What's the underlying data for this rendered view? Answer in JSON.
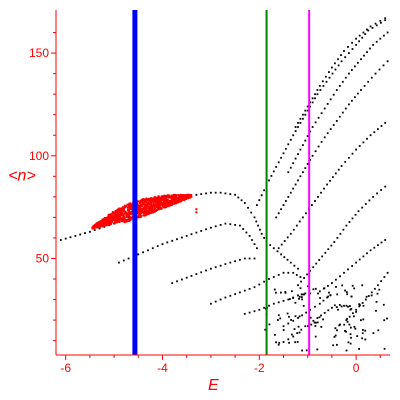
{
  "chart_data": {
    "type": "scatter",
    "title": "",
    "xlabel": "E",
    "ylabel": "<n>",
    "xlim": [
      -6.2,
      0.7
    ],
    "ylim": [
      3,
      170
    ],
    "xticks": [
      -6,
      -4,
      -2,
      0
    ],
    "yticks": [
      50,
      100,
      150
    ],
    "x_tick_labels": [
      "-6",
      "-4",
      "-2",
      "0"
    ],
    "y_tick_labels": [
      "50",
      "100",
      "150"
    ],
    "grid": false,
    "colors": {
      "axis": "#ff0000",
      "label": "#ff0000",
      "branches": "#000000",
      "cluster": "#ff0000",
      "line_blue": "#0000ff",
      "line_green": "#008000",
      "line_magenta": "#ff00ff"
    },
    "vertical_lines": [
      {
        "x": -4.57,
        "color": "#0000ff",
        "width": "thick"
      },
      {
        "x": -1.85,
        "color": "#008000",
        "width": "medium"
      },
      {
        "x": -0.97,
        "color": "#ff00ff",
        "width": "medium"
      }
    ],
    "red_cluster": {
      "x_range": [
        -5.45,
        -3.4
      ],
      "center": [
        [
          -5.45,
          65
        ],
        [
          -5.0,
          70
        ],
        [
          -4.5,
          74
        ],
        [
          -4.0,
          77.5
        ],
        [
          -3.6,
          79.5
        ],
        [
          -3.4,
          80.5
        ]
      ],
      "half_width": [
        [
          -5.45,
          0.5
        ],
        [
          -5.1,
          2.5
        ],
        [
          -4.7,
          4.5
        ],
        [
          -4.3,
          4.0
        ],
        [
          -3.8,
          2.5
        ],
        [
          -3.4,
          0.5
        ]
      ],
      "outliers": [
        [
          -3.3,
          72.5
        ],
        [
          -3.3,
          74.0
        ]
      ]
    },
    "series": [
      {
        "values": [
          [
            -6.1,
            59
          ],
          [
            -5.5,
            63
          ],
          [
            -5.0,
            67
          ],
          [
            -4.6,
            71
          ]
        ]
      },
      {
        "values": [
          [
            -3.3,
            81
          ],
          [
            -3.0,
            82
          ],
          [
            -2.8,
            82
          ],
          [
            -2.5,
            81
          ],
          [
            -2.3,
            77
          ],
          [
            -2.1,
            70
          ],
          [
            -1.95,
            62
          ],
          [
            -1.85,
            58
          ],
          [
            -1.7,
            55
          ],
          [
            -1.55,
            52
          ],
          [
            -1.35,
            48
          ],
          [
            -1.2,
            45
          ]
        ]
      },
      {
        "values": [
          [
            -4.9,
            48
          ],
          [
            -4.5,
            52
          ],
          [
            -4.0,
            57
          ],
          [
            -3.5,
            61
          ],
          [
            -3.0,
            65
          ],
          [
            -2.7,
            67
          ],
          [
            -2.4,
            66
          ],
          [
            -2.2,
            61
          ],
          [
            -2.05,
            55
          ]
        ]
      },
      {
        "values": [
          [
            -3.8,
            38
          ],
          [
            -3.4,
            41.5
          ],
          [
            -3.0,
            45
          ],
          [
            -2.6,
            48
          ],
          [
            -2.3,
            50
          ],
          [
            -2.1,
            50
          ]
        ]
      },
      {
        "values": [
          [
            -3.0,
            28
          ],
          [
            -2.7,
            31
          ],
          [
            -2.4,
            33.5
          ],
          [
            -2.1,
            36
          ],
          [
            -1.8,
            40
          ],
          [
            -1.5,
            43
          ],
          [
            -1.3,
            43
          ],
          [
            -1.15,
            41
          ]
        ]
      },
      {
        "values": [
          [
            -2.3,
            23
          ],
          [
            -2.0,
            25
          ],
          [
            -1.7,
            28
          ],
          [
            -1.4,
            30
          ],
          [
            -1.2,
            32
          ],
          [
            -1.05,
            33
          ],
          [
            -0.95,
            33
          ]
        ]
      },
      {
        "values": [
          [
            -1.5,
            17
          ],
          [
            -1.2,
            21
          ],
          [
            -0.95,
            25
          ],
          [
            -0.75,
            28
          ],
          [
            -0.6,
            31
          ]
        ]
      },
      {
        "values": [
          [
            -1.6,
            8
          ],
          [
            -1.3,
            12
          ],
          [
            -1.05,
            17
          ],
          [
            -0.8,
            21
          ],
          [
            -0.5,
            26
          ],
          [
            -0.2,
            27
          ],
          [
            0.0,
            24
          ]
        ]
      },
      {
        "values": [
          [
            -1.6,
            55
          ],
          [
            -1.35,
            62
          ],
          [
            -1.1,
            70
          ],
          [
            -0.85,
            78
          ],
          [
            -0.6,
            86
          ],
          [
            -0.3,
            95
          ],
          [
            0.0,
            103
          ],
          [
            0.3,
            110
          ],
          [
            0.6,
            116
          ]
        ]
      },
      {
        "values": [
          [
            -1.2,
            37
          ],
          [
            -0.95,
            44
          ],
          [
            -0.7,
            51
          ],
          [
            -0.45,
            58
          ],
          [
            -0.2,
            66
          ],
          [
            0.05,
            73
          ],
          [
            0.35,
            80
          ],
          [
            0.6,
            85
          ]
        ]
      },
      {
        "values": [
          [
            -0.75,
            34
          ],
          [
            -0.5,
            38
          ],
          [
            -0.25,
            43
          ],
          [
            0.0,
            48
          ],
          [
            0.3,
            54
          ],
          [
            0.6,
            59
          ]
        ]
      },
      {
        "values": [
          [
            -0.2,
            20
          ],
          [
            0.0,
            25
          ],
          [
            0.2,
            30
          ],
          [
            0.45,
            37
          ],
          [
            0.65,
            43
          ]
        ]
      },
      {
        "values": [
          [
            -1.65,
            70
          ],
          [
            -1.4,
            80
          ],
          [
            -1.15,
            90
          ],
          [
            -0.9,
            100
          ],
          [
            -0.65,
            109
          ],
          [
            -0.4,
            117
          ],
          [
            -0.15,
            125
          ],
          [
            0.1,
            132
          ],
          [
            0.4,
            140
          ],
          [
            0.65,
            146
          ]
        ]
      },
      {
        "values": [
          [
            -1.4,
            92
          ],
          [
            -1.15,
            103
          ],
          [
            -0.9,
            114
          ],
          [
            -0.65,
            123
          ],
          [
            -0.4,
            132
          ],
          [
            -0.15,
            140
          ],
          [
            0.1,
            147
          ],
          [
            0.35,
            154
          ],
          [
            0.65,
            160
          ]
        ]
      },
      {
        "values": [
          [
            -1.25,
            114
          ],
          [
            -1.0,
            124
          ],
          [
            -0.75,
            134
          ],
          [
            -0.5,
            143
          ],
          [
            -0.25,
            151
          ],
          [
            0.0,
            157
          ],
          [
            0.3,
            163
          ],
          [
            0.6,
            167
          ]
        ]
      },
      {
        "values": [
          [
            -2.05,
            76
          ],
          [
            -1.8,
            88
          ],
          [
            -1.55,
            99
          ],
          [
            -1.3,
            110
          ],
          [
            -1.05,
            120
          ],
          [
            -0.8,
            130
          ],
          [
            -0.55,
            138
          ],
          [
            -0.3,
            146
          ],
          [
            0.0,
            154
          ],
          [
            0.25,
            161
          ],
          [
            0.6,
            166
          ]
        ]
      }
    ]
  }
}
